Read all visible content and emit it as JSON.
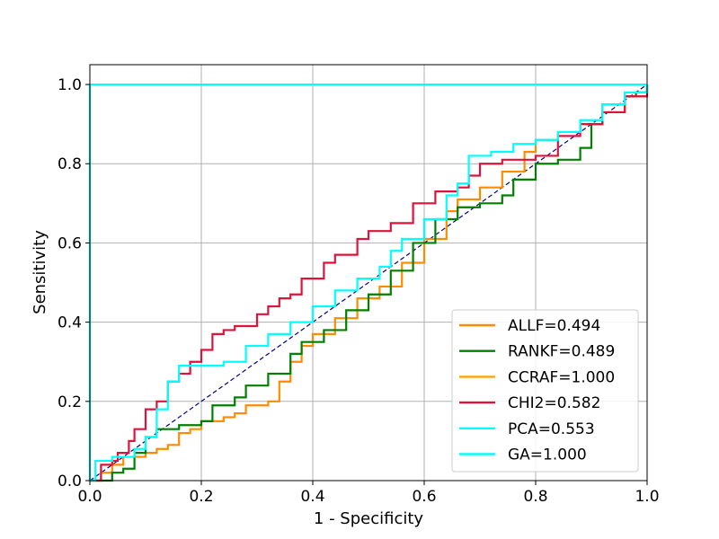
{
  "chart_data": {
    "type": "line",
    "title": "",
    "xlabel": "1 - Specificity",
    "ylabel": "Sensitivity",
    "xlim": [
      0.0,
      1.0
    ],
    "ylim": [
      0.0,
      1.05
    ],
    "xticks": [
      "0.0",
      "0.2",
      "0.4",
      "0.6",
      "0.8",
      "1.0"
    ],
    "yticks": [
      "0.0",
      "0.2",
      "0.4",
      "0.6",
      "0.8",
      "1.0"
    ],
    "grid": true,
    "legend_position": "bottom-right",
    "diagonal": {
      "color": "#000080",
      "style": "dashed",
      "points": [
        [
          0,
          0
        ],
        [
          1,
          1
        ]
      ]
    },
    "series": [
      {
        "name": "ALLF=0.494",
        "color": "#ff8c00",
        "points": [
          [
            0,
            0
          ],
          [
            0.02,
            0.02
          ],
          [
            0.04,
            0.04
          ],
          [
            0.06,
            0.06
          ],
          [
            0.08,
            0.06
          ],
          [
            0.1,
            0.07
          ],
          [
            0.12,
            0.08
          ],
          [
            0.14,
            0.09
          ],
          [
            0.16,
            0.12
          ],
          [
            0.18,
            0.13
          ],
          [
            0.2,
            0.15
          ],
          [
            0.24,
            0.16
          ],
          [
            0.26,
            0.17
          ],
          [
            0.28,
            0.19
          ],
          [
            0.32,
            0.2
          ],
          [
            0.34,
            0.25
          ],
          [
            0.36,
            0.3
          ],
          [
            0.38,
            0.34
          ],
          [
            0.4,
            0.37
          ],
          [
            0.44,
            0.41
          ],
          [
            0.48,
            0.46
          ],
          [
            0.52,
            0.49
          ],
          [
            0.56,
            0.55
          ],
          [
            0.6,
            0.61
          ],
          [
            0.64,
            0.68
          ],
          [
            0.66,
            0.71
          ],
          [
            0.7,
            0.74
          ],
          [
            0.74,
            0.78
          ],
          [
            0.78,
            0.83
          ],
          [
            0.8,
            0.86
          ],
          [
            0.84,
            0.88
          ],
          [
            0.88,
            0.9
          ],
          [
            0.92,
            0.93
          ],
          [
            0.96,
            0.97
          ],
          [
            1.0,
            1.0
          ]
        ]
      },
      {
        "name": "RANKF=0.489",
        "color": "#008000",
        "points": [
          [
            0,
            0
          ],
          [
            0.04,
            0.02
          ],
          [
            0.06,
            0.03
          ],
          [
            0.08,
            0.07
          ],
          [
            0.1,
            0.11
          ],
          [
            0.12,
            0.13
          ],
          [
            0.16,
            0.14
          ],
          [
            0.2,
            0.15
          ],
          [
            0.22,
            0.19
          ],
          [
            0.26,
            0.21
          ],
          [
            0.28,
            0.24
          ],
          [
            0.32,
            0.27
          ],
          [
            0.36,
            0.32
          ],
          [
            0.38,
            0.35
          ],
          [
            0.42,
            0.38
          ],
          [
            0.46,
            0.43
          ],
          [
            0.5,
            0.47
          ],
          [
            0.54,
            0.53
          ],
          [
            0.58,
            0.6
          ],
          [
            0.62,
            0.66
          ],
          [
            0.66,
            0.69
          ],
          [
            0.7,
            0.7
          ],
          [
            0.74,
            0.72
          ],
          [
            0.76,
            0.76
          ],
          [
            0.8,
            0.8
          ],
          [
            0.84,
            0.81
          ],
          [
            0.86,
            0.81
          ],
          [
            0.88,
            0.84
          ],
          [
            0.9,
            0.9
          ],
          [
            0.92,
            0.95
          ],
          [
            0.96,
            0.97
          ],
          [
            0.98,
            0.98
          ],
          [
            1.0,
            1.0
          ]
        ]
      },
      {
        "name": "CCRAF=1.000",
        "color": "#ffa500",
        "points": [
          [
            0,
            0
          ],
          [
            0,
            1.0
          ],
          [
            1.0,
            1.0
          ]
        ]
      },
      {
        "name": "CHI2=0.582",
        "color": "#dc143c",
        "points": [
          [
            0,
            0
          ],
          [
            0.02,
            0.04
          ],
          [
            0.04,
            0.05
          ],
          [
            0.05,
            0.07
          ],
          [
            0.07,
            0.1
          ],
          [
            0.08,
            0.13
          ],
          [
            0.1,
            0.18
          ],
          [
            0.12,
            0.2
          ],
          [
            0.14,
            0.25
          ],
          [
            0.16,
            0.27
          ],
          [
            0.18,
            0.3
          ],
          [
            0.2,
            0.33
          ],
          [
            0.22,
            0.37
          ],
          [
            0.24,
            0.38
          ],
          [
            0.26,
            0.39
          ],
          [
            0.3,
            0.42
          ],
          [
            0.32,
            0.44
          ],
          [
            0.34,
            0.46
          ],
          [
            0.36,
            0.47
          ],
          [
            0.38,
            0.51
          ],
          [
            0.42,
            0.55
          ],
          [
            0.44,
            0.57
          ],
          [
            0.48,
            0.61
          ],
          [
            0.5,
            0.63
          ],
          [
            0.54,
            0.65
          ],
          [
            0.58,
            0.7
          ],
          [
            0.62,
            0.73
          ],
          [
            0.66,
            0.74
          ],
          [
            0.68,
            0.77
          ],
          [
            0.7,
            0.8
          ],
          [
            0.74,
            0.81
          ],
          [
            0.8,
            0.82
          ],
          [
            0.84,
            0.87
          ],
          [
            0.88,
            0.9
          ],
          [
            0.92,
            0.93
          ],
          [
            0.96,
            0.97
          ],
          [
            1.0,
            1.0
          ]
        ]
      },
      {
        "name": "PCA=0.553",
        "color": "#00ffff",
        "points": [
          [
            0,
            0
          ],
          [
            0.01,
            0.05
          ],
          [
            0.04,
            0.06
          ],
          [
            0.08,
            0.08
          ],
          [
            0.1,
            0.11
          ],
          [
            0.12,
            0.18
          ],
          [
            0.14,
            0.25
          ],
          [
            0.16,
            0.29
          ],
          [
            0.24,
            0.3
          ],
          [
            0.28,
            0.34
          ],
          [
            0.32,
            0.37
          ],
          [
            0.36,
            0.4
          ],
          [
            0.4,
            0.44
          ],
          [
            0.44,
            0.48
          ],
          [
            0.48,
            0.51
          ],
          [
            0.52,
            0.54
          ],
          [
            0.54,
            0.58
          ],
          [
            0.56,
            0.61
          ],
          [
            0.6,
            0.66
          ],
          [
            0.64,
            0.72
          ],
          [
            0.66,
            0.75
          ],
          [
            0.68,
            0.82
          ],
          [
            0.72,
            0.83
          ],
          [
            0.76,
            0.85
          ],
          [
            0.8,
            0.86
          ],
          [
            0.84,
            0.88
          ],
          [
            0.88,
            0.91
          ],
          [
            0.92,
            0.95
          ],
          [
            0.96,
            0.98
          ],
          [
            1.0,
            1.0
          ]
        ]
      },
      {
        "name": "GA=1.000",
        "color": "#00ffff",
        "points": [
          [
            0,
            0
          ],
          [
            0,
            1.0
          ],
          [
            1.0,
            1.0
          ]
        ]
      }
    ]
  }
}
